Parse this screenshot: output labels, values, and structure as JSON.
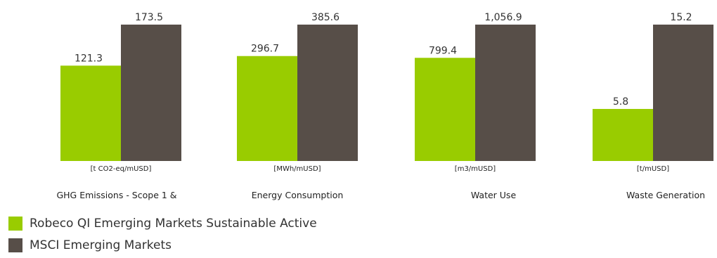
{
  "chart_data": {
    "type": "bar",
    "categories": [
      "GHG Emissions - Scope 1 &",
      "Energy Consumption",
      "Water Use",
      "Waste Generation"
    ],
    "units": [
      "[t CO2-eq/mUSD]",
      "[MWh/mUSD]",
      "[m3/mUSD]",
      "[t/mUSD]"
    ],
    "series": [
      {
        "name": "Robeco QI Emerging Markets Sustainable Active",
        "color": "#99cc00",
        "values": [
          121.3,
          296.7,
          799.4,
          5.8
        ],
        "labels": [
          "121.3",
          "296.7",
          "799.4",
          "5.8"
        ]
      },
      {
        "name": "MSCI Emerging Markets",
        "color": "#574e48",
        "values": [
          173.5,
          385.6,
          1056.9,
          15.2
        ],
        "labels": [
          "173.5",
          "385.6",
          "1,056.9",
          "15.2"
        ]
      }
    ],
    "title": "",
    "legend_position": "bottom-left",
    "grid": false
  }
}
